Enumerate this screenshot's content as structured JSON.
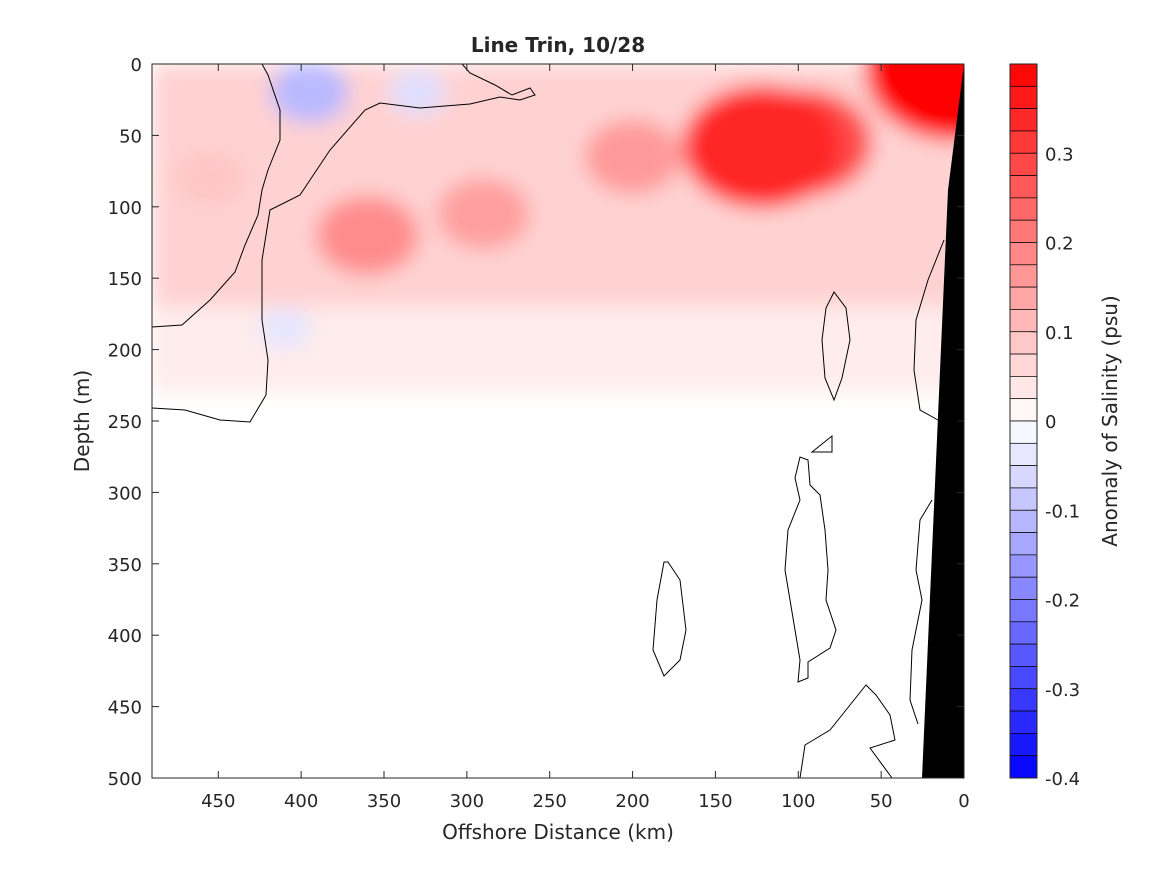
{
  "chart_data": {
    "type": "heatmap",
    "title": "Line Trin, 10/28",
    "xlabel": "Offshore Distance (km)",
    "ylabel": "Depth (m)",
    "colorbar_label": "Anomaly of Salinity (psu)",
    "x_reversed": true,
    "y_reversed": true,
    "xlim": [
      490,
      0
    ],
    "ylim": [
      0,
      500
    ],
    "xticks": [
      450,
      400,
      350,
      300,
      250,
      200,
      150,
      100,
      50,
      0
    ],
    "yticks": [
      0,
      50,
      100,
      150,
      200,
      250,
      300,
      350,
      400,
      450,
      500
    ],
    "clim": [
      -0.4,
      0.4
    ],
    "cticks": [
      {
        "value": 0.3,
        "label": "0.3"
      },
      {
        "value": 0.2,
        "label": "0.2"
      },
      {
        "value": 0.1,
        "label": "0.1"
      },
      {
        "value": 0,
        "label": "0"
      },
      {
        "value": -0.1,
        "label": "-0.1"
      },
      {
        "value": -0.2,
        "label": "-0.2"
      },
      {
        "value": -0.3,
        "label": "-0.3"
      },
      {
        "value": -0.4,
        "label": "-0.4"
      }
    ],
    "colormap": {
      "negative": "#0000ff",
      "zero": "#ffffff",
      "positive": "#ff0000",
      "levels": 32
    },
    "anomaly_features": [
      {
        "x_center": 122,
        "depth_center": 58,
        "max_anomaly": 0.34
      },
      {
        "x_center": 97,
        "depth_center": 55,
        "max_anomaly": 0.28
      },
      {
        "x_center": 200,
        "depth_center": 65,
        "max_anomaly": 0.16
      },
      {
        "x_center": 360,
        "depth_center": 120,
        "max_anomaly": 0.18
      },
      {
        "x_center": 290,
        "depth_center": 105,
        "max_anomaly": 0.15
      },
      {
        "x_center": 5,
        "depth_center": 5,
        "max_anomaly": 0.4
      },
      {
        "x_center": 455,
        "depth_center": 80,
        "max_anomaly": 0.09
      },
      {
        "x_center": 395,
        "depth_center": 20,
        "max_anomaly": -0.11
      },
      {
        "x_center": 330,
        "depth_center": 20,
        "max_anomaly": -0.05
      },
      {
        "x_center": 410,
        "depth_center": 185,
        "max_anomaly": -0.04
      }
    ],
    "land_mask_color": "#000000"
  }
}
